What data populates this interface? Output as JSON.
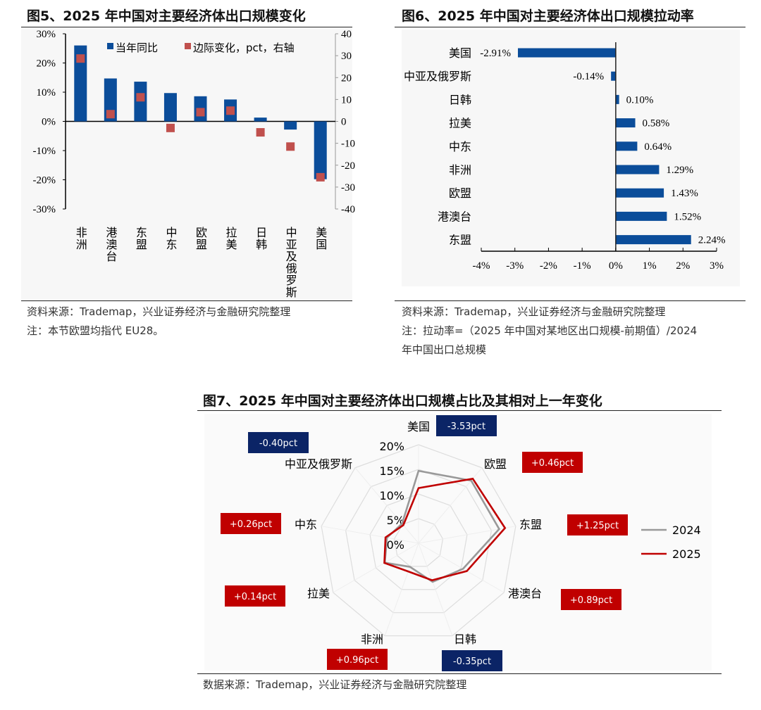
{
  "fig5": {
    "title": "图5、2025 年中国对主要经济体出口规模变化",
    "source": "资料来源：Trademap，兴业证券经济与金融研究院整理",
    "note": "注：本节欧盟均指代 EU28。"
  },
  "fig6": {
    "title": "图6、2025 年中国对主要经济体出口规模拉动率",
    "source": "资料来源：Trademap，兴业证券经济与金融研究院整理",
    "note1": "注：拉动率=（2025 年中国对某地区出口规模-前期值）/2024",
    "note2": "年中国出口总规模"
  },
  "fig7": {
    "title": "图7、2025 年中国对主要经济体出口规模占比及其相对上一年变化",
    "source": "数据来源：Trademap，兴业证券经济与金融研究院整理"
  },
  "chart_data": [
    {
      "type": "bar",
      "categories": [
        "非洲",
        "港澳台",
        "东盟",
        "中东",
        "欧盟",
        "拉美",
        "日韩",
        "中亚及俄罗斯",
        "美国"
      ],
      "series": [
        {
          "name": "当年同比",
          "type": "bar",
          "axis": "left",
          "color": "#0b4d9a",
          "values": [
            26.0,
            14.7,
            13.6,
            9.7,
            8.6,
            7.5,
            1.3,
            -2.8,
            -19.8
          ]
        },
        {
          "name": "边际变化，pct，右轴",
          "type": "scatter",
          "axis": "right",
          "color": "#c0504d",
          "values": [
            28.7,
            3.3,
            11.0,
            -3.0,
            4.2,
            4.9,
            -5.0,
            -11.5,
            -25.5
          ]
        }
      ],
      "ylim_left": [
        -30,
        30
      ],
      "yticks_left": [
        "30%",
        "20%",
        "10%",
        "0%",
        "-10%",
        "-20%",
        "-30%"
      ],
      "ylim_right": [
        -40,
        40
      ],
      "yticks_right": [
        "40",
        "30",
        "20",
        "10",
        "0",
        "-10",
        "-20",
        "-30",
        "-40"
      ],
      "legend": "top"
    },
    {
      "type": "bar",
      "orientation": "horizontal",
      "categories": [
        "美国",
        "中亚及俄罗斯",
        "日韩",
        "拉美",
        "中东",
        "非洲",
        "欧盟",
        "港澳台",
        "东盟"
      ],
      "values": [
        -2.91,
        -0.14,
        0.1,
        0.58,
        0.64,
        1.29,
        1.43,
        1.52,
        2.24
      ],
      "labels": [
        "-2.91%",
        "-0.14%",
        "0.10%",
        "0.58%",
        "0.64%",
        "1.29%",
        "1.43%",
        "1.52%",
        "2.24%"
      ],
      "color": "#0b4d9a",
      "xlim": [
        -4,
        3
      ],
      "xticks": [
        "-4%",
        "-3%",
        "-2%",
        "-1%",
        "0%",
        "1%",
        "2%",
        "3%"
      ]
    },
    {
      "type": "radar",
      "categories": [
        "美国",
        "欧盟",
        "东盟",
        "港澳台",
        "日韩",
        "非洲",
        "拉美",
        "中东",
        "中亚及俄罗斯"
      ],
      "series": [
        {
          "name": "2024",
          "color": "#999999",
          "values": [
            14.7,
            16.6,
            16.6,
            10.4,
            8.35,
            5.1,
            7.9,
            6.5,
            5.2
          ]
        },
        {
          "name": "2025",
          "color": "#c00000",
          "values": [
            11.2,
            17.1,
            17.8,
            11.3,
            8.0,
            6.1,
            8.0,
            6.8,
            4.8
          ]
        }
      ],
      "changes": [
        "-3.53pct",
        "+0.46pct",
        "+1.25pct",
        "+0.89pct",
        "-0.35pct",
        "+0.96pct",
        "+0.14pct",
        "+0.26pct",
        "-0.40pct"
      ],
      "change_colors": {
        "negative": "#0b2466",
        "positive": "#c00000"
      },
      "rlim": [
        0,
        20
      ],
      "rticks": [
        "0%",
        "5%",
        "10%",
        "15%",
        "20%"
      ],
      "legend": "right"
    }
  ]
}
